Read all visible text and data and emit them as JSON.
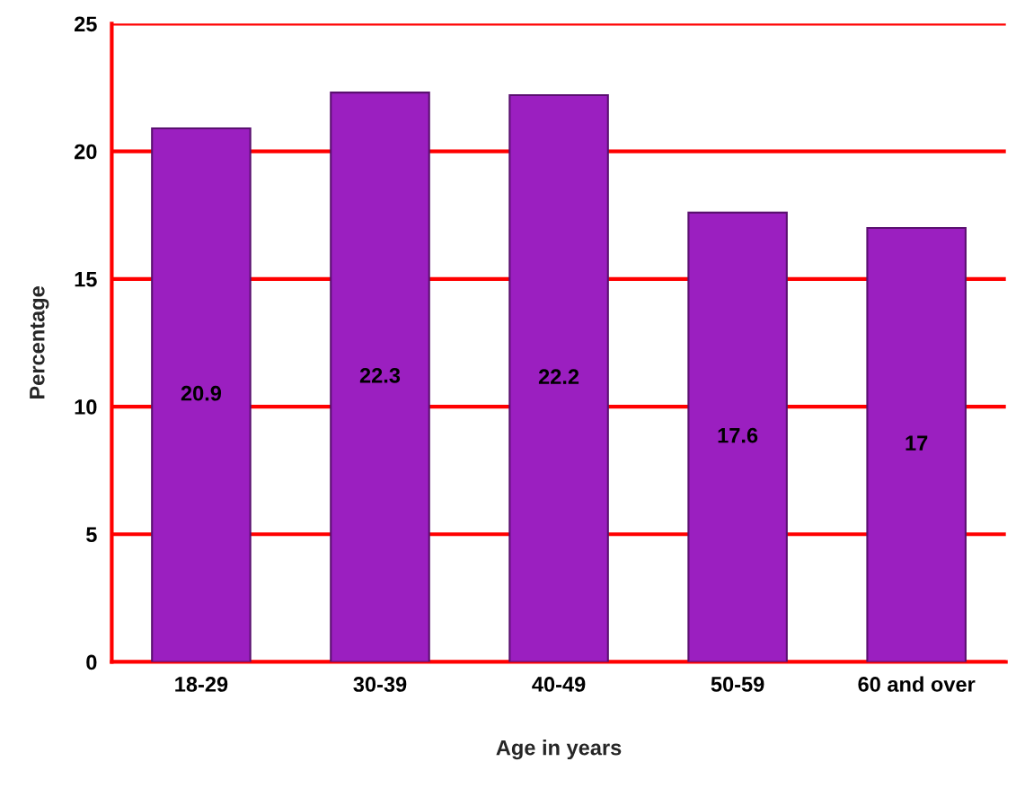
{
  "chart_data": {
    "type": "bar",
    "xlabel": "Age in years",
    "ylabel": "Percentage",
    "categories": [
      "18-29",
      "30-39",
      "40-49",
      "50-59",
      "60 and over"
    ],
    "values": [
      20.9,
      22.3,
      22.2,
      17.6,
      17
    ],
    "color": "#9b1fc0",
    "data_labels": true,
    "ylim": [
      0,
      25
    ],
    "yticks": [
      0,
      5,
      10,
      15,
      20,
      25
    ],
    "grid": "y",
    "legend": false
  }
}
